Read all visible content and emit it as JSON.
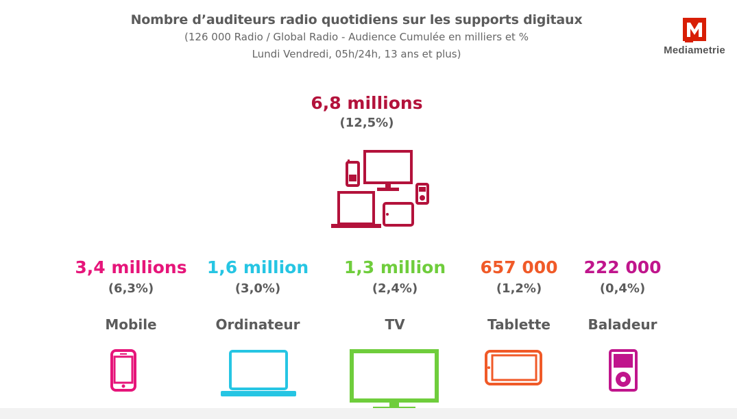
{
  "header": {
    "title": "Nombre d’auditeurs radio quotidiens sur les supports digitaux",
    "subtitle_line1": "(126 000 Radio / Global Radio - Audience Cumulée en milliers et %",
    "subtitle_line2": "Lundi Vendredi, 05h/24h, 13 ans et plus)"
  },
  "logo": {
    "text": "Mediametrie",
    "icon": "mediametrie-m-logo",
    "color": "#d81e05"
  },
  "total": {
    "value": "6,8 millions",
    "percent": "(12,5%)",
    "icon": "multi-device-icon",
    "color": "#b3123b"
  },
  "devices": [
    {
      "value": "3,4 millions",
      "percent": "(6,3%)",
      "label": "Mobile",
      "icon": "smartphone-icon",
      "color": "#e6157a"
    },
    {
      "value": "1,6 million",
      "percent": "(3,0%)",
      "label": "Ordinateur",
      "icon": "laptop-icon",
      "color": "#26c5e3"
    },
    {
      "value": "1,3 million",
      "percent": "(2,4%)",
      "label": "TV",
      "icon": "tv-icon",
      "color": "#6fcd3c"
    },
    {
      "value": "657 000",
      "percent": "(1,2%)",
      "label": "Tablette",
      "icon": "tablet-icon",
      "color": "#f05a28"
    },
    {
      "value": "222 000",
      "percent": "(0,4%)",
      "label": "Baladeur",
      "icon": "music-player-icon",
      "color": "#c0158c"
    }
  ]
}
